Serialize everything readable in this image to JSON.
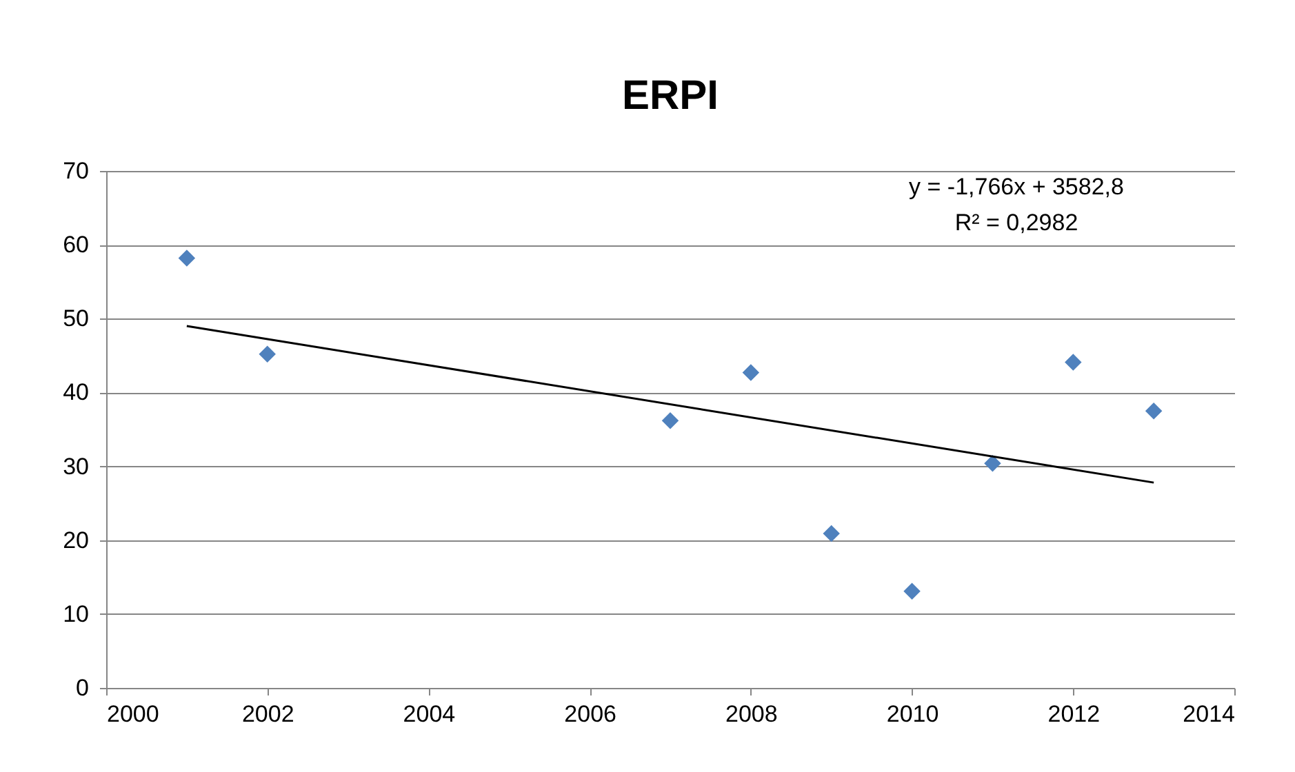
{
  "chart_data": {
    "type": "scatter",
    "title": "ERPI",
    "x": [
      2001,
      2002,
      2007,
      2008,
      2009,
      2010,
      2011,
      2012,
      2013
    ],
    "series": [
      {
        "color": "#4f81bd",
        "marker": "diamond",
        "values": [
          58.2,
          45.2,
          36.2,
          42.7,
          20.9,
          13.1,
          30.4,
          44.1,
          37.5
        ]
      },
      {
        "type": "line",
        "color": "#000000",
        "x": [
          2001,
          2013
        ],
        "values": [
          49.0,
          27.8
        ],
        "line_style": "solid"
      }
    ],
    "xlim": [
      2000,
      2014
    ],
    "xticks": [
      2000,
      2002,
      2004,
      2006,
      2008,
      2010,
      2012,
      2014
    ],
    "ylim": [
      0,
      70
    ],
    "yticks": [
      0,
      10,
      20,
      30,
      40,
      50,
      60,
      70
    ],
    "grid": "y",
    "annotations": [
      "y = -1,766x + 3582,8",
      "R² = 0,2982"
    ]
  }
}
